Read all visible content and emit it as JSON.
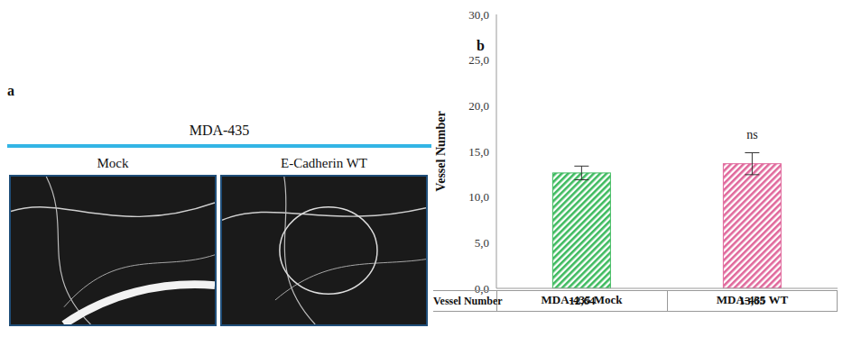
{
  "figure": {
    "panel_a": {
      "label": "a",
      "title": "MDA-435",
      "image_labels": [
        "Mock",
        "E-Cadherin WT"
      ]
    },
    "panel_b": {
      "label": "b"
    }
  },
  "chart_data": {
    "type": "bar",
    "categories": [
      "MDA-435 Mock",
      "MDA-435 WT"
    ],
    "values": [
      12.64,
      13.65
    ],
    "value_labels": [
      "12,64",
      "13,65"
    ],
    "errors": [
      0.75,
      1.2
    ],
    "colors": [
      "#3dba5e",
      "#e0679b"
    ],
    "ylabel": "Vessel Number",
    "ylim": [
      0,
      30
    ],
    "yticks": [
      {
        "value": 0,
        "label": "0,0"
      },
      {
        "value": 5,
        "label": "5,0"
      },
      {
        "value": 10,
        "label": "10,0"
      },
      {
        "value": 15,
        "label": "15,0"
      },
      {
        "value": 20,
        "label": "20,0"
      },
      {
        "value": 25,
        "label": "25,0"
      },
      {
        "value": 30,
        "label": "30,0"
      }
    ],
    "annotations": [
      {
        "category": "MDA-435 WT",
        "text": "ns"
      }
    ],
    "table": {
      "row_label": "Vessel Number"
    },
    "grid": false
  }
}
